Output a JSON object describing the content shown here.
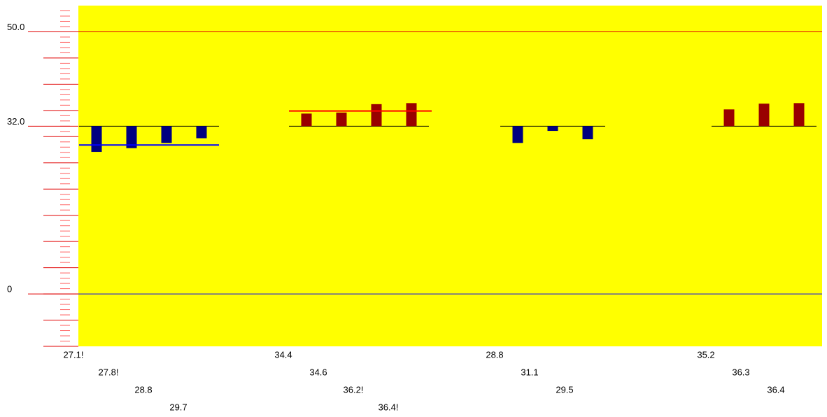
{
  "chart_data": {
    "type": "bar",
    "ylim": [
      -10,
      55
    ],
    "yticks": [
      0,
      {
        "value": 32,
        "label": "32.0"
      },
      {
        "value": 50,
        "label": "50.0"
      }
    ],
    "major_ticks": [
      -10,
      -5,
      0,
      5,
      10,
      15,
      20,
      25,
      30,
      35,
      40,
      45,
      50
    ],
    "minor_ticks": [
      -9,
      -8,
      -7,
      -6,
      -4,
      -3,
      -2,
      -1,
      1,
      2,
      3,
      4,
      6,
      7,
      8,
      9,
      11,
      12,
      13,
      14,
      16,
      17,
      18,
      19,
      21,
      22,
      23,
      24,
      26,
      27,
      28,
      29,
      31,
      32,
      33,
      34,
      36,
      37,
      38,
      39,
      41,
      42,
      43,
      44,
      46,
      47,
      48,
      49,
      51,
      52,
      53,
      54
    ],
    "background": "#ffff00",
    "groups": [
      {
        "baseline": 32,
        "color": "#000080",
        "level": 28.4,
        "level_color": "#0000ff",
        "values": [
          27.1,
          27.8,
          28.8,
          29.7
        ],
        "value_labels": [
          "27.1!",
          "27.8!",
          "28.8",
          "29.7"
        ]
      },
      {
        "baseline": 32,
        "color": "#990000",
        "level": 34.9,
        "level_color": "#ff0000",
        "values": [
          34.4,
          34.6,
          36.2,
          36.4
        ],
        "value_labels": [
          "34.4",
          "34.6",
          "36.2!",
          "36.4!"
        ]
      },
      {
        "baseline": 32,
        "color": "#000080",
        "values": [
          28.8,
          31.1,
          29.5
        ],
        "value_labels": [
          "28.8",
          "31.1",
          "29.5"
        ]
      },
      {
        "baseline": 32,
        "color": "#990000",
        "values": [
          35.2,
          36.3,
          36.4
        ],
        "value_labels": [
          "35.2",
          "36.3",
          "36.4"
        ]
      }
    ]
  }
}
